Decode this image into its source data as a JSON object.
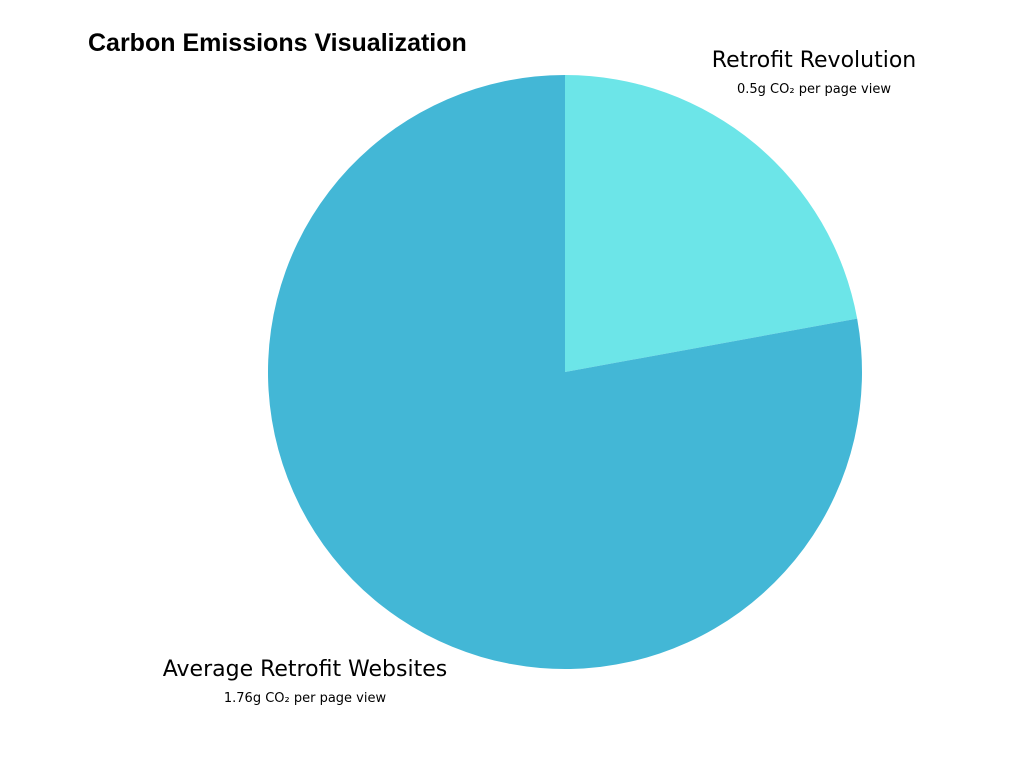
{
  "chart_data": {
    "type": "pie",
    "title": "Carbon Emissions Visualization",
    "slices": [
      {
        "name": "Retrofit Revolution",
        "value": 0.5,
        "value_label": "0.5g CO₂ per page view",
        "color": "#6ce5e8"
      },
      {
        "name": "Average Retrofit Websites",
        "value": 1.76,
        "value_label": "1.76g CO₂ per page view",
        "color": "#43b7d6"
      }
    ],
    "legend": "none"
  }
}
